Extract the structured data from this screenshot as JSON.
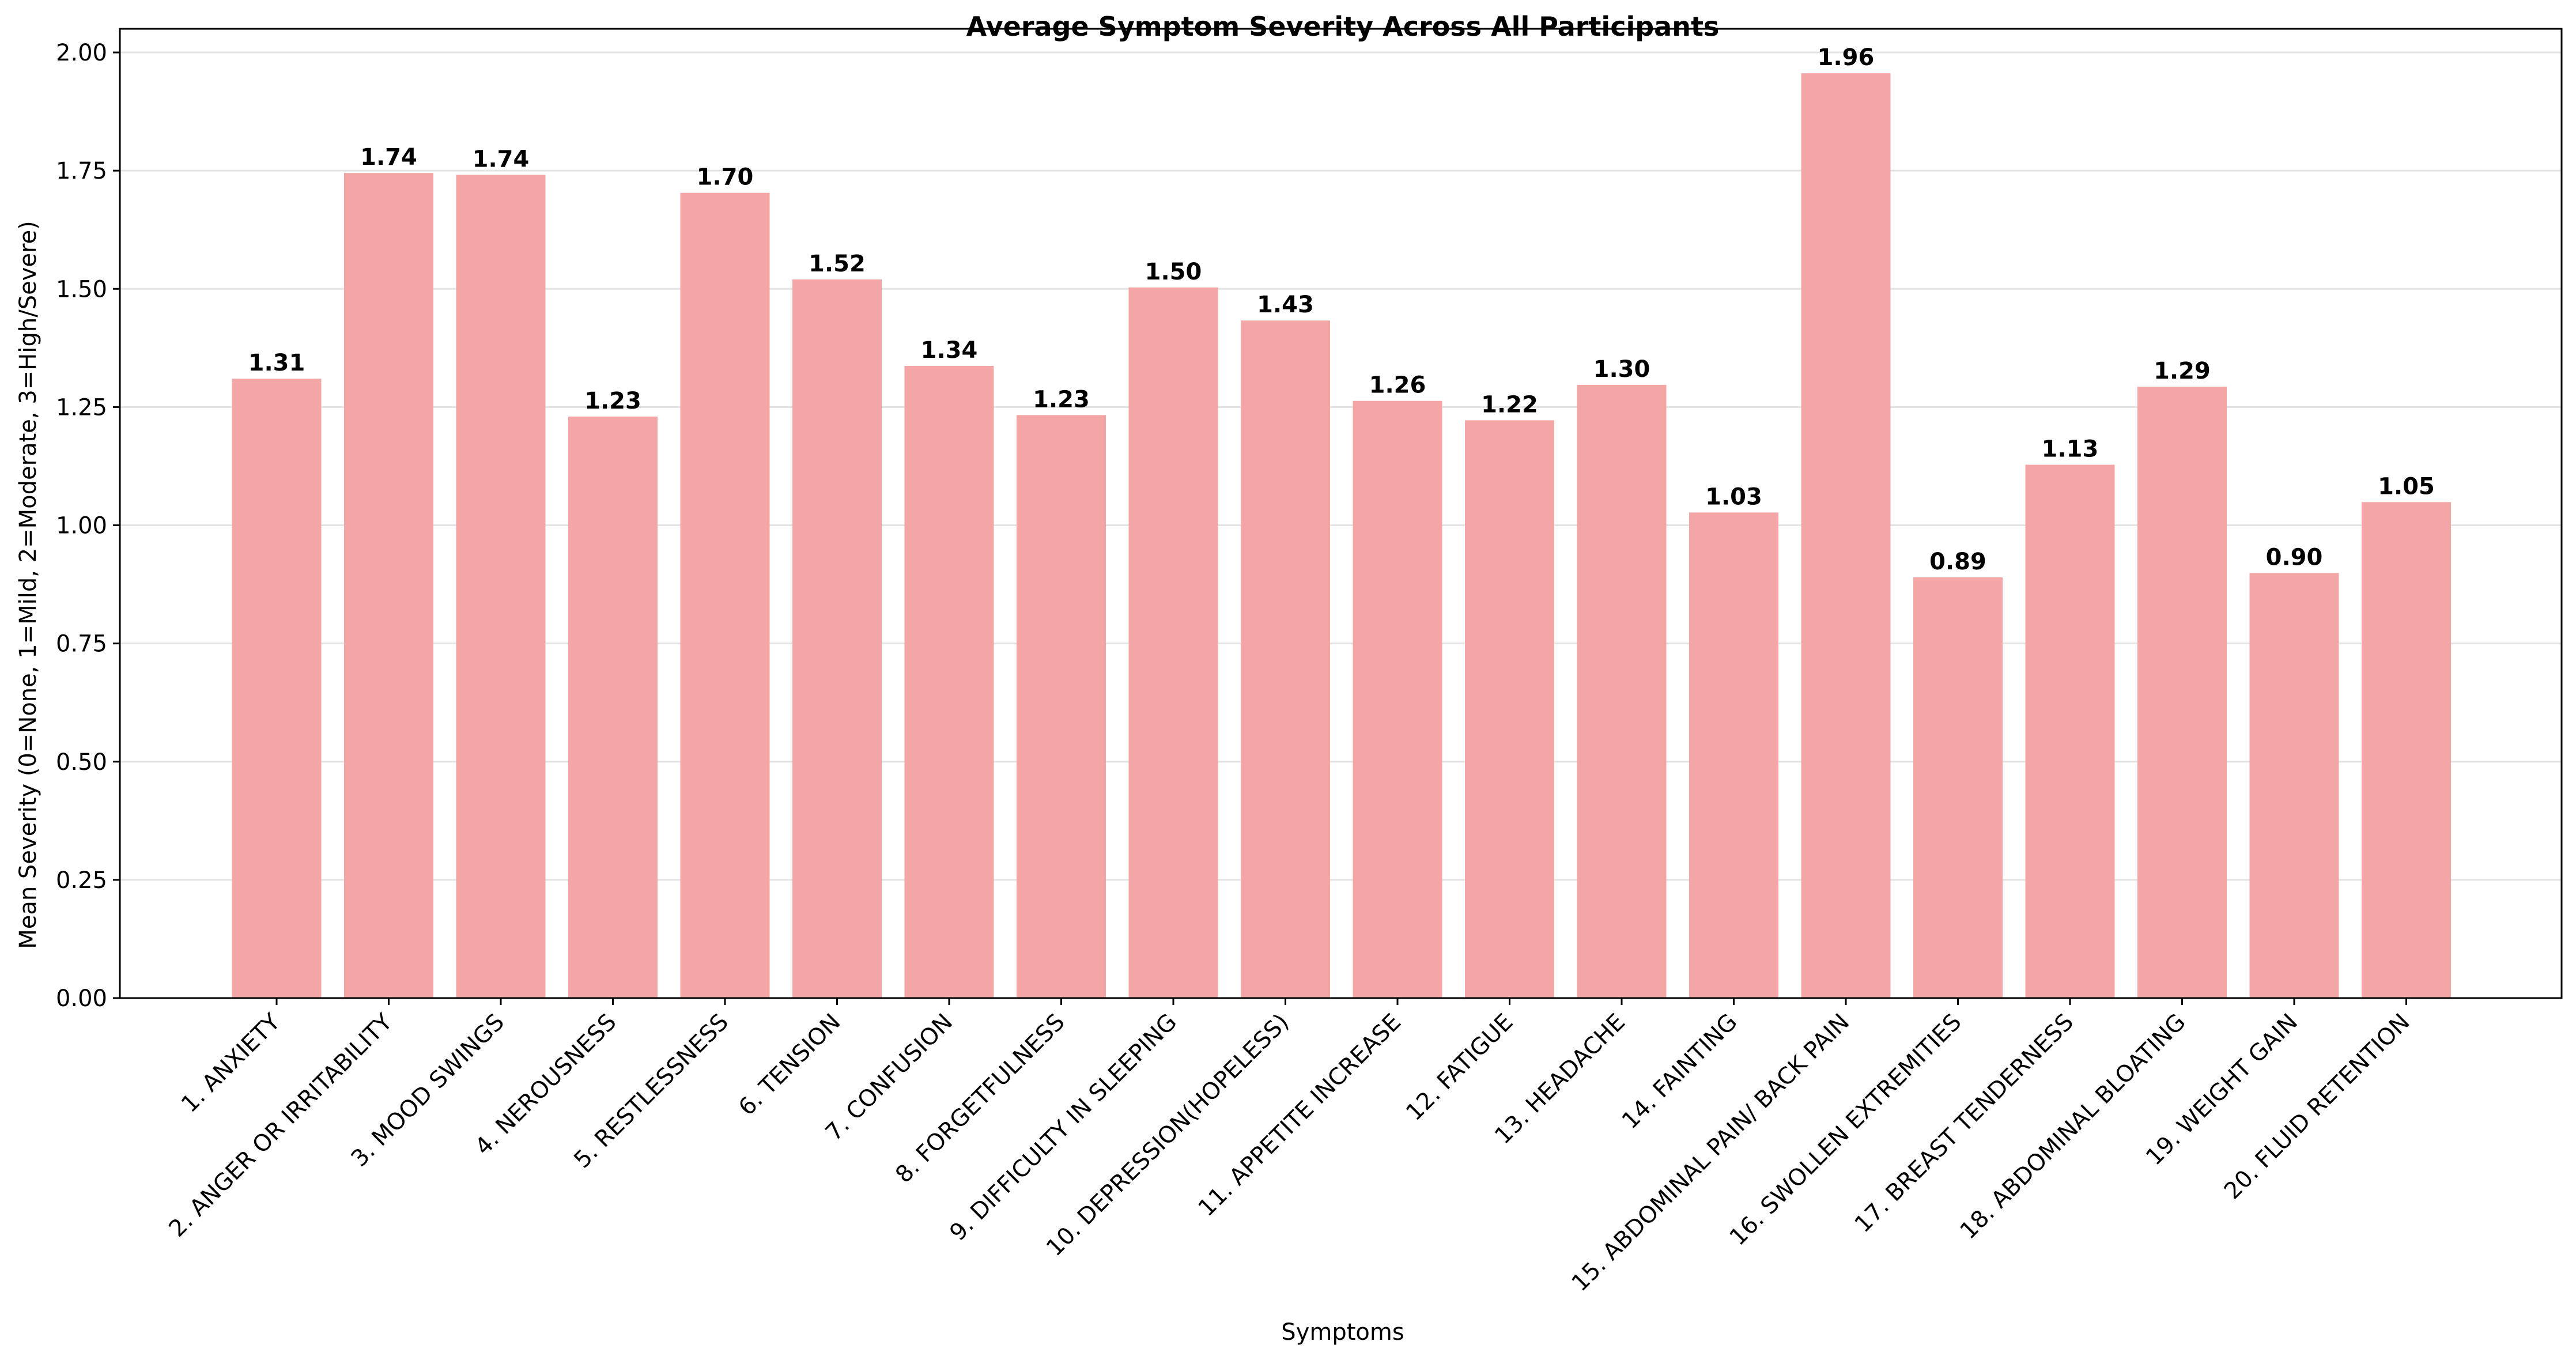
{
  "chart_data": {
    "type": "bar",
    "title": "Average Symptom Severity Across All Participants",
    "xlabel": "Symptoms",
    "ylabel": "Mean Severity (0=None, 1=Mild, 2=Moderate, 3=High/Severe)",
    "ylim": [
      0,
      2.05
    ],
    "yticks": [
      0.0,
      0.25,
      0.5,
      0.75,
      1.0,
      1.25,
      1.5,
      1.75,
      2.0
    ],
    "grid": "horizontal",
    "bar_color": "#f4a6a6",
    "categories": [
      "1. ANXIETY",
      "2. ANGER OR IRRITABILITY",
      "3. MOOD SWINGS",
      "4. NEROUSNESS",
      "5. RESTLESSNESS",
      "6. TENSION",
      "7. CONFUSION",
      "8. FORGETFULNESS",
      "9. DIFFICULTY IN SLEEPING",
      "10. DEPRESSION(HOPELESS)",
      "11. APPETITE INCREASE",
      "12. FATIGUE",
      "13. HEADACHE",
      "14. FAINTING",
      "15. ABDOMINAL PAIN/ BACK PAIN",
      "16. SWOLLEN EXTREMITIES",
      "17. BREAST TENDERNESS",
      "18. ABDOMINAL BLOATING",
      "19. WEIGHT GAIN",
      "20. FLUID RETENTION"
    ],
    "values": [
      1.31,
      1.745,
      1.741,
      1.23,
      1.703,
      1.52,
      1.337,
      1.233,
      1.503,
      1.433,
      1.263,
      1.222,
      1.297,
      1.027,
      1.956,
      0.89,
      1.128,
      1.293,
      0.899,
      1.049
    ],
    "value_labels": [
      "1.31",
      "1.74",
      "1.74",
      "1.23",
      "1.70",
      "1.52",
      "1.34",
      "1.23",
      "1.50",
      "1.43",
      "1.26",
      "1.22",
      "1.30",
      "1.03",
      "1.96",
      "0.89",
      "1.13",
      "1.29",
      "0.90",
      "1.05"
    ]
  }
}
